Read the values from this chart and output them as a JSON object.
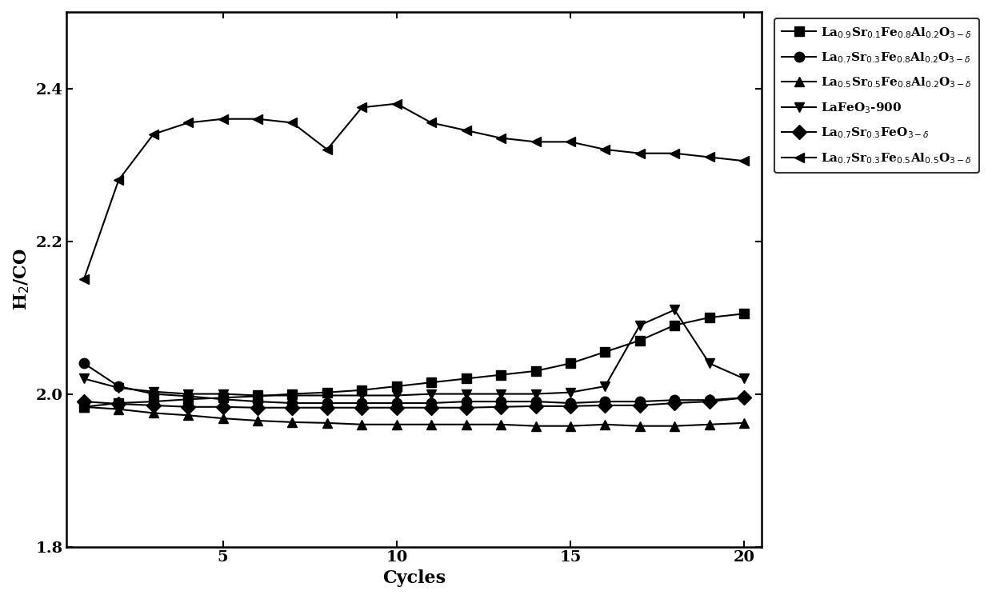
{
  "series": [
    {
      "label": "La$_{{0.9}}$Sr$_{{0.1}}$Fe$_{{0.8}}$Al$_{{0.2}}$O$_{{3-\\delta}}$",
      "marker": "s",
      "x": [
        1,
        2,
        3,
        4,
        5,
        6,
        7,
        8,
        9,
        10,
        11,
        12,
        13,
        14,
        15,
        16,
        17,
        18,
        19,
        20
      ],
      "y": [
        1.983,
        1.988,
        1.99,
        1.993,
        1.995,
        1.997,
        2.0,
        2.002,
        2.005,
        2.01,
        2.015,
        2.02,
        2.025,
        2.03,
        2.04,
        2.055,
        2.07,
        2.09,
        2.1,
        2.105
      ]
    },
    {
      "label": "La$_{{0.7}}$Sr$_{{0.3}}$Fe$_{{0.8}}$Al$_{{0.2}}$O$_{{3-\\delta}}$",
      "marker": "o",
      "x": [
        1,
        2,
        3,
        4,
        5,
        6,
        7,
        8,
        9,
        10,
        11,
        12,
        13,
        14,
        15,
        16,
        17,
        18,
        19,
        20
      ],
      "y": [
        2.04,
        2.01,
        2.0,
        1.997,
        1.993,
        1.99,
        1.988,
        1.988,
        1.988,
        1.988,
        1.988,
        1.99,
        1.99,
        1.99,
        1.988,
        1.99,
        1.99,
        1.992,
        1.992,
        1.995
      ]
    },
    {
      "label": "La$_{{0.5}}$Sr$_{{0.5}}$Fe$_{{0.8}}$Al$_{{0.2}}$O$_{{3-\\delta}}$",
      "marker": "^",
      "x": [
        1,
        2,
        3,
        4,
        5,
        6,
        7,
        8,
        9,
        10,
        11,
        12,
        13,
        14,
        15,
        16,
        17,
        18,
        19,
        20
      ],
      "y": [
        1.983,
        1.98,
        1.975,
        1.972,
        1.968,
        1.965,
        1.963,
        1.962,
        1.96,
        1.96,
        1.96,
        1.96,
        1.96,
        1.958,
        1.958,
        1.96,
        1.958,
        1.958,
        1.96,
        1.962
      ]
    },
    {
      "label": "LaFeO$_3$-900",
      "marker": "v",
      "x": [
        1,
        2,
        3,
        4,
        5,
        6,
        7,
        8,
        9,
        10,
        11,
        12,
        13,
        14,
        15,
        16,
        17,
        18,
        19,
        20
      ],
      "y": [
        2.02,
        2.008,
        2.003,
        2.0,
        2.0,
        1.998,
        1.998,
        1.998,
        1.998,
        1.998,
        2.0,
        2.0,
        2.0,
        2.0,
        2.002,
        2.01,
        2.09,
        2.11,
        2.04,
        2.02
      ]
    },
    {
      "label": "La$_{{0.7}}$Sr$_{{0.3}}$FeO$_{{3-\\delta}}$",
      "marker": "D",
      "x": [
        1,
        2,
        3,
        4,
        5,
        6,
        7,
        8,
        9,
        10,
        11,
        12,
        13,
        14,
        15,
        16,
        17,
        18,
        19,
        20
      ],
      "y": [
        1.99,
        1.987,
        1.985,
        1.983,
        1.983,
        1.982,
        1.982,
        1.982,
        1.982,
        1.982,
        1.982,
        1.982,
        1.983,
        1.984,
        1.984,
        1.985,
        1.985,
        1.988,
        1.99,
        1.995
      ]
    },
    {
      "label": "La$_{{0.7}}$Sr$_{{0.3}}$Fe$_{{0.5}}$Al$_{{0.5}}$O$_{{3-\\delta}}$",
      "marker": "<",
      "x": [
        1,
        2,
        3,
        4,
        5,
        6,
        7,
        8,
        9,
        10,
        11,
        12,
        13,
        14,
        15,
        16,
        17,
        18,
        19,
        20
      ],
      "y": [
        2.15,
        2.28,
        2.34,
        2.355,
        2.36,
        2.36,
        2.355,
        2.32,
        2.375,
        2.38,
        2.355,
        2.345,
        2.335,
        2.33,
        2.33,
        2.32,
        2.315,
        2.315,
        2.31,
        2.305
      ]
    }
  ],
  "xlabel": "Cycles",
  "ylabel": "H$_2$/CO",
  "xlim": [
    0.5,
    20.5
  ],
  "ylim": [
    1.8,
    2.5
  ],
  "xticks": [
    5,
    10,
    15,
    20
  ],
  "yticks": [
    1.8,
    2.0,
    2.2,
    2.4
  ],
  "color": "black",
  "linewidth": 1.5,
  "markersize": 9,
  "figsize": [
    12.4,
    7.49
  ],
  "dpi": 100
}
